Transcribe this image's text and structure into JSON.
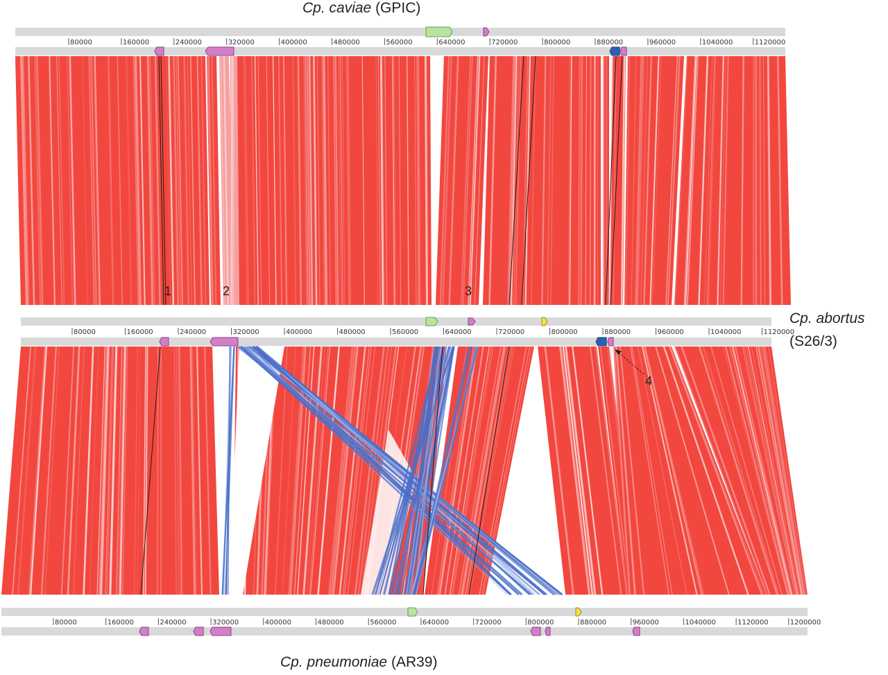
{
  "genomes": [
    {
      "species": "Cp. caviae",
      "strain": "(GPIC)",
      "ticks": [
        "80000",
        "160000",
        "240000",
        "320000",
        "400000",
        "480000",
        "560000",
        "640000",
        "720000",
        "800000",
        "880000",
        "960000",
        "1040000",
        "1120000"
      ]
    },
    {
      "species": "Cp. abortus",
      "strain": "(S26/3)",
      "ticks": [
        "80000",
        "160000",
        "240000",
        "320000",
        "400000",
        "480000",
        "560000",
        "640000",
        "720000",
        "800000",
        "880000",
        "960000",
        "1040000",
        "1120000"
      ]
    },
    {
      "species": "Cp. pneumoniae",
      "strain": "(AR39)",
      "ticks": [
        "80000",
        "160000",
        "240000",
        "320000",
        "400000",
        "480000",
        "560000",
        "640000",
        "720000",
        "800000",
        "880000",
        "960000",
        "1040000",
        "1120000",
        "1200000"
      ]
    }
  ],
  "annotations": [
    "1",
    "2",
    "3",
    "4"
  ],
  "colors": {
    "forward_match": "#f2473f",
    "forward_light": "#f7a0a0",
    "inverted_match": "#4a6fc9",
    "inverted_light": "#9fb3e6",
    "track": "#d9d9d9",
    "feature_green": "#b9e3a3",
    "feature_pink": "#d37fc8",
    "feature_blue": "#2f5fb4",
    "feature_yellow": "#f2e24a"
  }
}
